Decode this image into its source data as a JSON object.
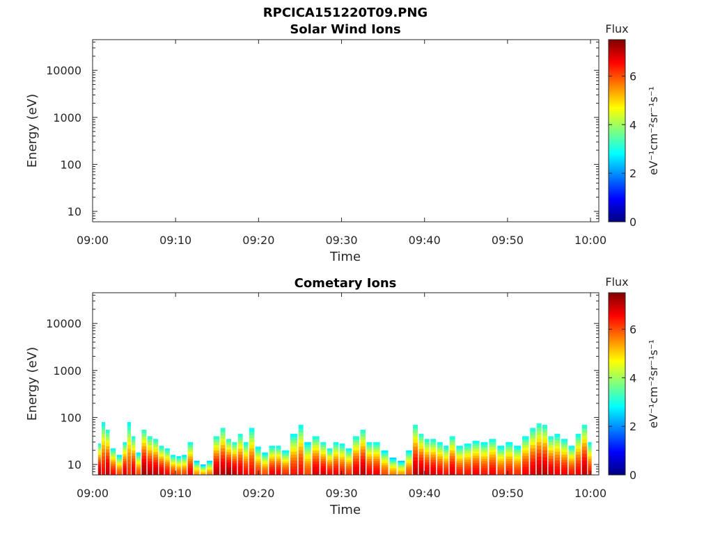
{
  "figure_title": "RPCICA151220T09.PNG",
  "colorbar": {
    "title": "Flux",
    "unit_label": "eV⁻¹cm⁻²sr⁻¹s⁻¹",
    "ticks": [
      "0",
      "2",
      "4",
      "6"
    ],
    "range": [
      0,
      7.5
    ],
    "colormap": "jet"
  },
  "chart_data": [
    {
      "type": "heatmap",
      "title": "Solar Wind Ions",
      "xlabel": "Time",
      "ylabel": "Energy (eV)",
      "x_ticks": [
        "09:00",
        "09:10",
        "09:20",
        "09:30",
        "09:40",
        "09:50",
        "10:00"
      ],
      "y_ticks": [
        "10",
        "100",
        "1000",
        "10000"
      ],
      "y_scale": "log",
      "ylim": [
        6,
        45000
      ],
      "xlim": [
        "09:00",
        "10:01"
      ],
      "data": []
    },
    {
      "type": "heatmap",
      "title": "Cometary Ions",
      "xlabel": "Time",
      "ylabel": "Energy (eV)",
      "x_ticks": [
        "09:00",
        "09:10",
        "09:20",
        "09:30",
        "09:40",
        "09:50",
        "10:00"
      ],
      "y_ticks": [
        "10",
        "100",
        "1000",
        "10000"
      ],
      "y_scale": "log",
      "ylim": [
        6,
        45000
      ],
      "xlim": [
        "09:00",
        "10:01"
      ],
      "data_note": "flux columns: [minutes after 09:00, max energy eV, peak flux]",
      "columns": [
        [
          0.8,
          28,
          7
        ],
        [
          1.3,
          80,
          6.5
        ],
        [
          1.8,
          55,
          7
        ],
        [
          2.4,
          22,
          6.5
        ],
        [
          3.3,
          16,
          6
        ],
        [
          3.9,
          30,
          6.8
        ],
        [
          4.4,
          80,
          6.2
        ],
        [
          4.9,
          40,
          6.8
        ],
        [
          5.5,
          18,
          6
        ],
        [
          6.2,
          55,
          7.2
        ],
        [
          6.9,
          40,
          7
        ],
        [
          7.6,
          35,
          7
        ],
        [
          8.3,
          25,
          6.8
        ],
        [
          9.0,
          22,
          6.5
        ],
        [
          9.7,
          16,
          6.2
        ],
        [
          10.4,
          15,
          6
        ],
        [
          11.0,
          16,
          6
        ],
        [
          11.8,
          30,
          6.6
        ],
        [
          12.5,
          12,
          5.5
        ],
        [
          13.4,
          10,
          5.4
        ],
        [
          14.0,
          12,
          5.6
        ],
        [
          15.0,
          40,
          7
        ],
        [
          15.7,
          60,
          7
        ],
        [
          16.4,
          35,
          7.2
        ],
        [
          17.1,
          30,
          7
        ],
        [
          17.8,
          45,
          6.8
        ],
        [
          18.5,
          30,
          6.5
        ],
        [
          19.1,
          60,
          6.5
        ],
        [
          20.0,
          24,
          6.2
        ],
        [
          20.7,
          18,
          6
        ],
        [
          21.7,
          25,
          6.6
        ],
        [
          22.4,
          25,
          6.6
        ],
        [
          23.1,
          20,
          6.2
        ],
        [
          24.4,
          45,
          6.4
        ],
        [
          25.1,
          70,
          6.5
        ],
        [
          25.8,
          30,
          6
        ],
        [
          27.0,
          40,
          6.8
        ],
        [
          27.8,
          30,
          6.8
        ],
        [
          28.6,
          22,
          6.5
        ],
        [
          29.3,
          30,
          6.6
        ],
        [
          30.1,
          28,
          6.4
        ],
        [
          30.8,
          22,
          6.2
        ],
        [
          31.8,
          40,
          6.8
        ],
        [
          32.6,
          55,
          7
        ],
        [
          33.3,
          30,
          6.6
        ],
        [
          34.2,
          30,
          6.6
        ],
        [
          35.2,
          20,
          6
        ],
        [
          36.2,
          14,
          5.6
        ],
        [
          37.2,
          12,
          5.4
        ],
        [
          38.2,
          20,
          6
        ],
        [
          38.9,
          70,
          7
        ],
        [
          39.6,
          45,
          7
        ],
        [
          40.3,
          35,
          6.8
        ],
        [
          41.0,
          35,
          6.8
        ],
        [
          41.9,
          30,
          6.6
        ],
        [
          42.6,
          25,
          6.4
        ],
        [
          43.3,
          40,
          6.8
        ],
        [
          44.2,
          25,
          6.4
        ],
        [
          45.2,
          28,
          6.4
        ],
        [
          46.2,
          32,
          6.6
        ],
        [
          47.2,
          30,
          6.4
        ],
        [
          48.2,
          35,
          6.6
        ],
        [
          49.2,
          25,
          6.2
        ],
        [
          50.2,
          30,
          6.4
        ],
        [
          51.2,
          25,
          6.2
        ],
        [
          52.2,
          40,
          6.6
        ],
        [
          53.1,
          60,
          6.8
        ],
        [
          53.8,
          75,
          7
        ],
        [
          54.5,
          70,
          7
        ],
        [
          55.2,
          40,
          6.8
        ],
        [
          56.0,
          45,
          6.6
        ],
        [
          56.8,
          35,
          6.6
        ],
        [
          57.8,
          25,
          6.4
        ],
        [
          58.5,
          45,
          6.6
        ],
        [
          59.3,
          70,
          7
        ],
        [
          60.0,
          30,
          6.4
        ]
      ]
    }
  ]
}
